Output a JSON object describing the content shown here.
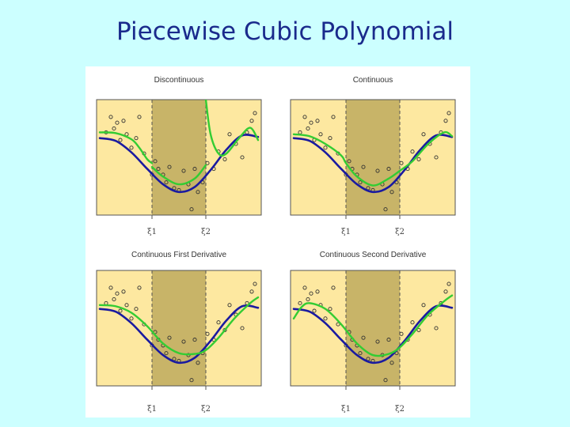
{
  "slide": {
    "title": "Piecewise Cubic Polynomial"
  },
  "colors": {
    "background": "#ccffff",
    "title": "#1a2a8c",
    "outer_region": "#fde8a0",
    "middle_region": "#c8b468",
    "true_curve": "#1a1aa0",
    "fit_curve": "#33cc33",
    "points": "#333333"
  },
  "chart_data": [
    {
      "type": "line",
      "title": "Discontinuous",
      "knot_labels": [
        "ξ1",
        "ξ2"
      ],
      "knots": [
        0.33,
        0.67
      ],
      "xlim": [
        0,
        1
      ],
      "ylim": [
        -1.55,
        1.45
      ],
      "series": [
        {
          "name": "",
          "role": "true",
          "x": [
            0,
            0.1,
            0.2,
            0.3,
            0.4,
            0.5,
            0.6,
            0.7,
            0.8,
            0.9,
            1.0
          ],
          "y": [
            0.45,
            0.38,
            0.08,
            -0.35,
            -0.75,
            -0.95,
            -0.82,
            -0.38,
            0.15,
            0.52,
            0.48
          ]
        },
        {
          "name": "",
          "role": "fit_left",
          "x": [
            0,
            0.1,
            0.2,
            0.25,
            0.3,
            0.33
          ],
          "y": [
            0.6,
            0.58,
            0.42,
            0.2,
            -0.1,
            -0.2
          ]
        },
        {
          "name": "",
          "role": "fit_mid",
          "x": [
            0.33,
            0.4,
            0.5,
            0.6,
            0.67
          ],
          "y": [
            -0.3,
            -0.55,
            -0.75,
            -0.6,
            -0.25
          ]
        },
        {
          "name": "",
          "role": "fit_right",
          "x": [
            0.67,
            0.7,
            0.75,
            0.8,
            0.88,
            0.95,
            1.0
          ],
          "y": [
            1.45,
            0.55,
            0.05,
            0.05,
            0.45,
            0.72,
            0.4
          ]
        }
      ],
      "points": {
        "x": [
          0.04,
          0.07,
          0.09,
          0.11,
          0.13,
          0.15,
          0.17,
          0.2,
          0.23,
          0.25,
          0.28,
          0.33,
          0.35,
          0.37,
          0.4,
          0.42,
          0.44,
          0.47,
          0.5,
          0.53,
          0.56,
          0.58,
          0.6,
          0.62,
          0.65,
          0.68,
          0.72,
          0.75,
          0.79,
          0.82,
          0.86,
          0.9,
          0.93,
          0.96,
          0.98
        ],
        "y": [
          0.6,
          1.0,
          0.7,
          0.85,
          0.4,
          0.9,
          0.55,
          0.2,
          0.45,
          1.0,
          0.05,
          -0.5,
          -0.15,
          -0.35,
          -0.5,
          -0.7,
          -0.3,
          -0.85,
          -0.9,
          -0.4,
          -0.75,
          -1.4,
          -0.35,
          -0.95,
          -0.7,
          -0.2,
          -0.35,
          0.1,
          -0.1,
          0.55,
          0.3,
          -0.05,
          0.6,
          0.9,
          1.1
        ]
      }
    },
    {
      "type": "line",
      "title": "Continuous",
      "knot_labels": [
        "ξ1",
        "ξ2"
      ],
      "knots": [
        0.33,
        0.67
      ],
      "xlim": [
        0,
        1
      ],
      "ylim": [
        -1.55,
        1.45
      ],
      "series": [
        {
          "name": "",
          "role": "true",
          "x": [
            0,
            0.1,
            0.2,
            0.3,
            0.4,
            0.5,
            0.6,
            0.7,
            0.8,
            0.9,
            1.0
          ],
          "y": [
            0.45,
            0.38,
            0.08,
            -0.35,
            -0.75,
            -0.95,
            -0.82,
            -0.38,
            0.15,
            0.52,
            0.48
          ]
        },
        {
          "name": "",
          "role": "fit",
          "x": [
            0,
            0.1,
            0.2,
            0.3,
            0.33,
            0.4,
            0.5,
            0.6,
            0.67,
            0.75,
            0.85,
            0.95,
            1.0
          ],
          "y": [
            0.55,
            0.5,
            0.3,
            0.0,
            -0.2,
            -0.55,
            -0.78,
            -0.6,
            -0.4,
            -0.15,
            0.3,
            0.6,
            0.5
          ]
        }
      ],
      "points": {
        "x": [
          0.04,
          0.07,
          0.09,
          0.11,
          0.13,
          0.15,
          0.17,
          0.2,
          0.23,
          0.25,
          0.28,
          0.33,
          0.35,
          0.37,
          0.4,
          0.42,
          0.44,
          0.47,
          0.5,
          0.53,
          0.56,
          0.58,
          0.6,
          0.62,
          0.65,
          0.68,
          0.72,
          0.75,
          0.79,
          0.82,
          0.86,
          0.9,
          0.93,
          0.96,
          0.98
        ],
        "y": [
          0.6,
          1.0,
          0.7,
          0.85,
          0.4,
          0.9,
          0.55,
          0.2,
          0.45,
          1.0,
          0.05,
          -0.5,
          -0.15,
          -0.35,
          -0.5,
          -0.7,
          -0.3,
          -0.85,
          -0.9,
          -0.4,
          -0.75,
          -1.4,
          -0.35,
          -0.95,
          -0.7,
          -0.2,
          -0.35,
          0.1,
          -0.1,
          0.55,
          0.3,
          -0.05,
          0.6,
          0.9,
          1.1
        ]
      }
    },
    {
      "type": "line",
      "title": "Continuous First Derivative",
      "knot_labels": [
        "ξ1",
        "ξ2"
      ],
      "knots": [
        0.33,
        0.67
      ],
      "xlim": [
        0,
        1
      ],
      "ylim": [
        -1.55,
        1.45
      ],
      "series": [
        {
          "name": "",
          "role": "true",
          "x": [
            0,
            0.1,
            0.2,
            0.3,
            0.4,
            0.5,
            0.6,
            0.7,
            0.8,
            0.9,
            1.0
          ],
          "y": [
            0.45,
            0.38,
            0.08,
            -0.35,
            -0.75,
            -0.95,
            -0.82,
            -0.38,
            0.15,
            0.52,
            0.48
          ]
        },
        {
          "name": "",
          "role": "fit",
          "x": [
            0,
            0.1,
            0.2,
            0.3,
            0.4,
            0.5,
            0.6,
            0.67,
            0.75,
            0.85,
            0.95,
            1.0
          ],
          "y": [
            0.55,
            0.52,
            0.35,
            0.0,
            -0.45,
            -0.7,
            -0.72,
            -0.62,
            -0.3,
            0.2,
            0.6,
            0.75
          ]
        }
      ],
      "points": {
        "x": [
          0.04,
          0.07,
          0.09,
          0.11,
          0.13,
          0.15,
          0.17,
          0.2,
          0.23,
          0.25,
          0.28,
          0.33,
          0.35,
          0.37,
          0.4,
          0.42,
          0.44,
          0.47,
          0.5,
          0.53,
          0.56,
          0.58,
          0.6,
          0.62,
          0.65,
          0.68,
          0.72,
          0.75,
          0.79,
          0.82,
          0.86,
          0.9,
          0.93,
          0.96,
          0.98
        ],
        "y": [
          0.6,
          1.0,
          0.7,
          0.85,
          0.4,
          0.9,
          0.55,
          0.2,
          0.45,
          1.0,
          0.05,
          -0.5,
          -0.15,
          -0.35,
          -0.5,
          -0.7,
          -0.3,
          -0.85,
          -0.9,
          -0.4,
          -0.75,
          -1.4,
          -0.35,
          -0.95,
          -0.7,
          -0.2,
          -0.35,
          0.1,
          -0.1,
          0.55,
          0.3,
          -0.05,
          0.6,
          0.9,
          1.1
        ]
      }
    },
    {
      "type": "line",
      "title": "Continuous Second Derivative",
      "knot_labels": [
        "ξ1",
        "ξ2"
      ],
      "knots": [
        0.33,
        0.67
      ],
      "xlim": [
        0,
        1
      ],
      "ylim": [
        -1.55,
        1.45
      ],
      "series": [
        {
          "name": "",
          "role": "true",
          "x": [
            0,
            0.1,
            0.2,
            0.3,
            0.4,
            0.5,
            0.6,
            0.7,
            0.8,
            0.9,
            1.0
          ],
          "y": [
            0.45,
            0.38,
            0.08,
            -0.35,
            -0.75,
            -0.95,
            -0.82,
            -0.38,
            0.15,
            0.52,
            0.48
          ]
        },
        {
          "name": "",
          "role": "fit",
          "x": [
            0,
            0.05,
            0.1,
            0.2,
            0.3,
            0.4,
            0.5,
            0.6,
            0.67,
            0.75,
            0.85,
            0.95,
            1.0
          ],
          "y": [
            0.2,
            0.5,
            0.6,
            0.45,
            0.05,
            -0.45,
            -0.75,
            -0.72,
            -0.55,
            -0.2,
            0.3,
            0.65,
            0.8
          ]
        }
      ],
      "points": {
        "x": [
          0.04,
          0.07,
          0.09,
          0.11,
          0.13,
          0.15,
          0.17,
          0.2,
          0.23,
          0.25,
          0.28,
          0.33,
          0.35,
          0.37,
          0.4,
          0.42,
          0.44,
          0.47,
          0.5,
          0.53,
          0.56,
          0.58,
          0.6,
          0.62,
          0.65,
          0.68,
          0.72,
          0.75,
          0.79,
          0.82,
          0.86,
          0.9,
          0.93,
          0.96,
          0.98
        ],
        "y": [
          0.6,
          1.0,
          0.7,
          0.85,
          0.4,
          0.9,
          0.55,
          0.2,
          0.45,
          1.0,
          0.05,
          -0.5,
          -0.15,
          -0.35,
          -0.5,
          -0.7,
          -0.3,
          -0.85,
          -0.9,
          -0.4,
          -0.75,
          -1.4,
          -0.35,
          -0.95,
          -0.7,
          -0.2,
          -0.35,
          0.1,
          -0.1,
          0.55,
          0.3,
          -0.05,
          0.6,
          0.9,
          1.1
        ]
      }
    }
  ]
}
